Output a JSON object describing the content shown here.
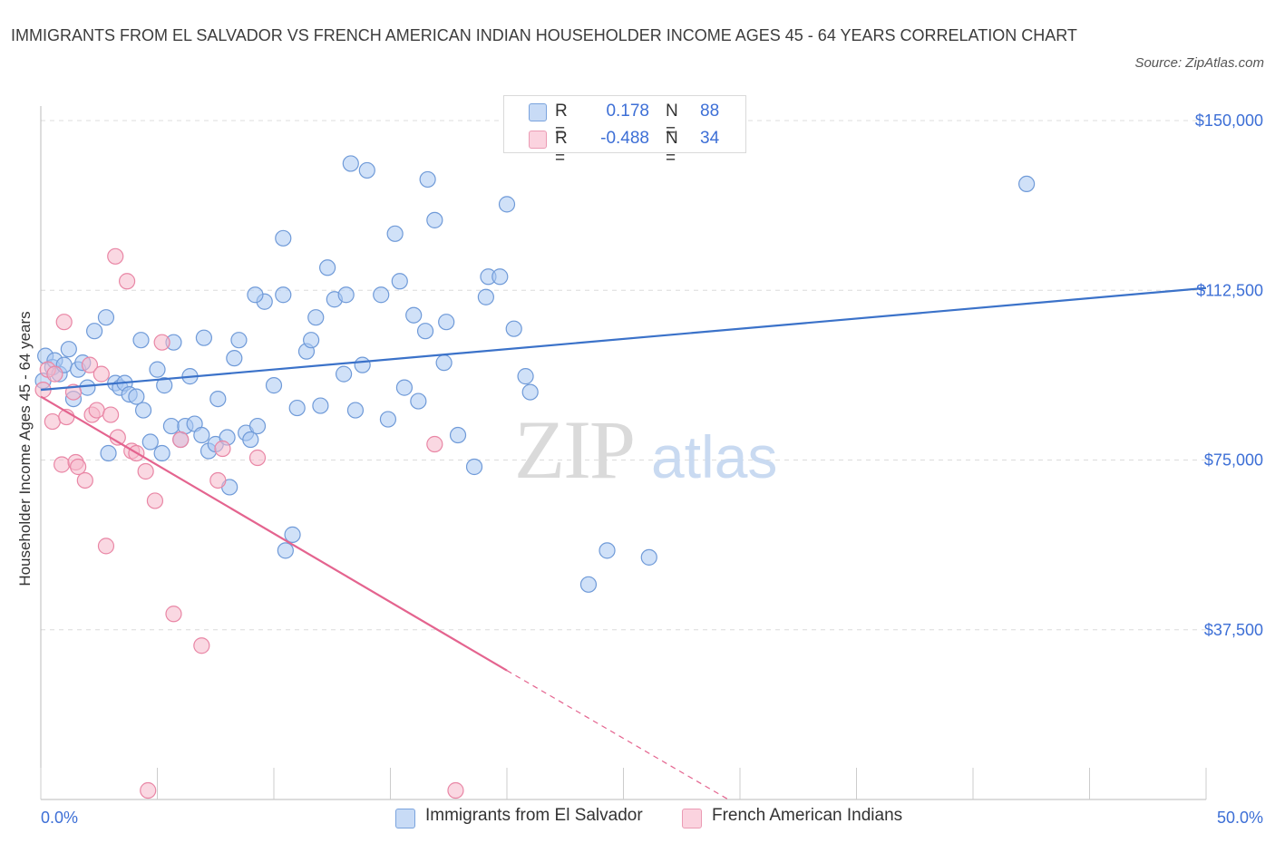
{
  "header": {
    "title": "IMMIGRANTS FROM EL SALVADOR VS FRENCH AMERICAN INDIAN HOUSEHOLDER INCOME AGES 45 - 64 YEARS CORRELATION CHART",
    "source": "Source: ZipAtlas.com"
  },
  "watermark": {
    "zip": "ZIP",
    "atlas": "atlas"
  },
  "stats": [
    {
      "r_label": "R =",
      "r_value": "0.178",
      "n_label": "N =",
      "n_value": "88",
      "color": "#aac8f2"
    },
    {
      "r_label": "R =",
      "r_value": "-0.488",
      "n_label": "N =",
      "n_value": "34",
      "color": "#f6b8cb"
    }
  ],
  "chart_data": {
    "type": "scatter",
    "ylabel": "Householder Income Ages 45 - 64 years",
    "xlabel": "",
    "xlim": [
      0,
      50
    ],
    "ylim": [
      0,
      150000
    ],
    "x_tick_labels": [
      "0.0%",
      "50.0%"
    ],
    "y_ticks": [
      37500,
      75000,
      112500,
      150000
    ],
    "y_tick_labels": [
      "$37,500",
      "$75,000",
      "$112,500",
      "$150,000"
    ],
    "grid": true,
    "legend_position": "bottom-center",
    "series": [
      {
        "name": "Immigrants from El Salvador",
        "color": "#aac8f2",
        "stroke": "#6f9ad8",
        "trend": {
          "x": [
            0,
            50
          ],
          "y": [
            90500,
            113000
          ],
          "color": "#3b72c9"
        },
        "points": [
          [
            0.2,
            98000
          ],
          [
            0.5,
            95500
          ],
          [
            0.6,
            97000
          ],
          [
            0.8,
            94000
          ],
          [
            1.0,
            96000
          ],
          [
            1.2,
            99500
          ],
          [
            1.4,
            88500
          ],
          [
            1.6,
            95000
          ],
          [
            1.8,
            96500
          ],
          [
            2.0,
            91000
          ],
          [
            2.3,
            103500
          ],
          [
            2.8,
            106500
          ],
          [
            2.9,
            76500
          ],
          [
            3.2,
            92000
          ],
          [
            3.4,
            91000
          ],
          [
            3.6,
            92000
          ],
          [
            3.8,
            89500
          ],
          [
            4.1,
            89000
          ],
          [
            4.3,
            101500
          ],
          [
            4.4,
            86000
          ],
          [
            4.7,
            79000
          ],
          [
            5.0,
            95000
          ],
          [
            5.2,
            76500
          ],
          [
            5.3,
            91500
          ],
          [
            5.6,
            82500
          ],
          [
            5.7,
            101000
          ],
          [
            6.0,
            79500
          ],
          [
            6.2,
            82500
          ],
          [
            6.4,
            93500
          ],
          [
            6.6,
            83000
          ],
          [
            6.9,
            80500
          ],
          [
            7.0,
            102000
          ],
          [
            7.2,
            77000
          ],
          [
            7.6,
            88500
          ],
          [
            7.5,
            78500
          ],
          [
            8.0,
            80000
          ],
          [
            8.1,
            69000
          ],
          [
            8.3,
            97500
          ],
          [
            8.5,
            101500
          ],
          [
            8.8,
            81000
          ],
          [
            9.0,
            79500
          ],
          [
            9.3,
            82500
          ],
          [
            9.6,
            110000
          ],
          [
            9.2,
            111500
          ],
          [
            10.0,
            91500
          ],
          [
            10.4,
            111500
          ],
          [
            10.4,
            124000
          ],
          [
            10.5,
            55000
          ],
          [
            10.8,
            58500
          ],
          [
            11.0,
            86500
          ],
          [
            11.4,
            99000
          ],
          [
            11.6,
            101500
          ],
          [
            11.8,
            106500
          ],
          [
            12.0,
            87000
          ],
          [
            12.3,
            117500
          ],
          [
            12.6,
            110500
          ],
          [
            13.0,
            94000
          ],
          [
            13.1,
            111500
          ],
          [
            13.3,
            140500
          ],
          [
            13.5,
            86000
          ],
          [
            13.8,
            96000
          ],
          [
            14.0,
            139000
          ],
          [
            14.6,
            111500
          ],
          [
            14.9,
            84000
          ],
          [
            15.2,
            125000
          ],
          [
            15.4,
            114500
          ],
          [
            15.6,
            91000
          ],
          [
            16.0,
            107000
          ],
          [
            16.2,
            88000
          ],
          [
            16.5,
            103500
          ],
          [
            16.6,
            137000
          ],
          [
            16.9,
            128000
          ],
          [
            17.3,
            96500
          ],
          [
            17.4,
            105500
          ],
          [
            17.9,
            80500
          ],
          [
            18.6,
            73500
          ],
          [
            19.1,
            111000
          ],
          [
            19.2,
            115500
          ],
          [
            19.7,
            115500
          ],
          [
            20.0,
            131500
          ],
          [
            20.3,
            104000
          ],
          [
            20.8,
            93500
          ],
          [
            21.0,
            90000
          ],
          [
            23.5,
            47500
          ],
          [
            24.3,
            55000
          ],
          [
            26.1,
            53500
          ],
          [
            42.3,
            136000
          ],
          [
            0.1,
            92500
          ]
        ]
      },
      {
        "name": "French American Indians",
        "color": "#f6b8cb",
        "stroke": "#e986a5",
        "trend": {
          "x": [
            0,
            20
          ],
          "y": [
            89000,
            28500
          ],
          "dash_x": [
            20,
            29.5
          ],
          "dash_y": [
            28500,
            0
          ],
          "color": "#e4648f"
        },
        "points": [
          [
            0.1,
            90500
          ],
          [
            0.3,
            95000
          ],
          [
            0.5,
            83500
          ],
          [
            0.6,
            94000
          ],
          [
            0.9,
            74000
          ],
          [
            1.0,
            105500
          ],
          [
            1.1,
            84500
          ],
          [
            1.4,
            90000
          ],
          [
            1.5,
            74500
          ],
          [
            1.6,
            73500
          ],
          [
            1.9,
            70500
          ],
          [
            2.1,
            96000
          ],
          [
            2.2,
            85000
          ],
          [
            2.4,
            86000
          ],
          [
            2.6,
            94000
          ],
          [
            2.8,
            56000
          ],
          [
            3.0,
            85000
          ],
          [
            3.2,
            120000
          ],
          [
            3.3,
            80000
          ],
          [
            3.7,
            114500
          ],
          [
            3.9,
            77000
          ],
          [
            4.1,
            76500
          ],
          [
            4.5,
            72500
          ],
          [
            4.6,
            2000
          ],
          [
            4.9,
            66000
          ],
          [
            5.2,
            101000
          ],
          [
            5.7,
            41000
          ],
          [
            6.0,
            79500
          ],
          [
            6.9,
            34000
          ],
          [
            7.6,
            70500
          ],
          [
            7.8,
            77500
          ],
          [
            9.3,
            75500
          ],
          [
            16.9,
            78500
          ],
          [
            17.8,
            2000
          ]
        ]
      }
    ]
  }
}
